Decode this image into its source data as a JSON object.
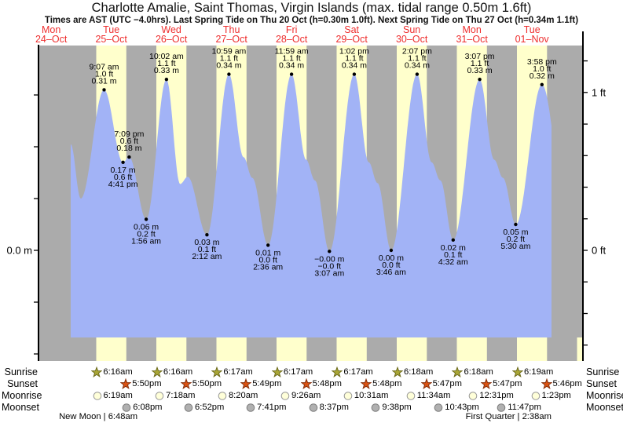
{
  "header": {
    "title": "Charlotte Amalie, Saint Thomas, Virgin Islands (max. tidal range 0.50m 1.6ft)",
    "subtitle": "Times are AST (UTC −4.0hrs). Last Spring Tide on Thu 20 Oct (h=0.30m 1.0ft). Next Spring Tide on Thu 27 Oct (h=0.34m 1.1ft)"
  },
  "day_labels": [
    {
      "weekday": "Mon",
      "date": "24–Oct"
    },
    {
      "weekday": "Tue",
      "date": "25–Oct"
    },
    {
      "weekday": "Wed",
      "date": "26–Oct"
    },
    {
      "weekday": "Thu",
      "date": "27–Oct"
    },
    {
      "weekday": "Fri",
      "date": "28–Oct"
    },
    {
      "weekday": "Sat",
      "date": "29–Oct"
    },
    {
      "weekday": "Sun",
      "date": "30–Oct"
    },
    {
      "weekday": "Mon",
      "date": "31–Oct"
    },
    {
      "weekday": "Tue",
      "date": "01–Nov"
    }
  ],
  "axis": {
    "left_label": "0.0 m",
    "right_labels": [
      {
        "text": "1 ft",
        "ft": 1.0
      },
      {
        "text": "0 ft",
        "ft": 0.0
      }
    ]
  },
  "colors": {
    "day_band": "#ffffcc",
    "night_band": "#ababab",
    "no_data": "#ababab",
    "water_fill": "#a2b3f6",
    "date_label": "#ee2e2e",
    "sunrise_star_fill": "#a9a636",
    "sunrise_star_stroke": "#6d6b1c",
    "sunset_star_fill": "#d95212",
    "sunset_star_stroke": "#842c08",
    "moonrise_fill": "#ffffd9",
    "moonrise_stroke": "#999999",
    "moonset_fill": "#b0b0b0",
    "moonset_stroke": "#7d7d7d"
  },
  "chart_data": {
    "type": "area",
    "title": "Charlotte Amalie, Saint Thomas, Virgin Islands (max. tidal range 0.50m 1.6ft)",
    "xlabel": "time (hours from Mon 24-Oct 00:00 AST, 9 day columns Mon 24-Oct to Tue 01-Nov)",
    "ylabel": "tide height",
    "y_unit": "m",
    "ylim_m": [
      -0.21,
      0.4
    ],
    "y_ticks_m": [
      0.3,
      0.2,
      0.1,
      0.0,
      -0.1,
      -0.2
    ],
    "y_ticks_ft": [
      1.2,
      1.0,
      0.8,
      0.6,
      0.4,
      0.2,
      0.0,
      -0.2,
      -0.4,
      -0.6
    ],
    "grid": false,
    "legend": false,
    "data_window_hours": [
      19.8,
      211.8
    ],
    "high_tides": [
      {
        "time": "9:07 am",
        "ft_label": "1.0 ft",
        "m_label": "0.31 m",
        "t": 33.117,
        "h": 0.31
      },
      {
        "time": "7:09 pm",
        "ft_label": "0.6 ft",
        "m_label": "0.18 m",
        "t": 43.15,
        "h": 0.18
      },
      {
        "time": "10:02 am",
        "ft_label": "1.1 ft",
        "m_label": "0.33 m",
        "t": 58.033,
        "h": 0.33
      },
      {
        "time": "10:59 am",
        "ft_label": "1.1 ft",
        "m_label": "0.34 m",
        "t": 82.983,
        "h": 0.34
      },
      {
        "time": "11:59 am",
        "ft_label": "1.1 ft",
        "m_label": "0.34 m",
        "t": 107.983,
        "h": 0.34
      },
      {
        "time": "1:02 pm",
        "ft_label": "1.1 ft",
        "m_label": "0.34 m",
        "t": 133.033,
        "h": 0.34
      },
      {
        "time": "2:07 pm",
        "ft_label": "1.1 ft",
        "m_label": "0.34 m",
        "t": 158.117,
        "h": 0.34
      },
      {
        "time": "3:07 pm",
        "ft_label": "1.1 ft",
        "m_label": "0.33 m",
        "t": 183.117,
        "h": 0.33
      },
      {
        "time": "3:58 pm",
        "ft_label": "1.0 ft",
        "m_label": "0.32 m",
        "t": 207.967,
        "h": 0.32
      }
    ],
    "low_tides": [
      {
        "time": "4:41 pm",
        "ft_label": "0.6 ft",
        "m_label": "0.17 m",
        "t": 40.683,
        "h": 0.17
      },
      {
        "time": "1:56 am",
        "ft_label": "0.2 ft",
        "m_label": "0.06 m",
        "t": 49.933,
        "h": 0.06
      },
      {
        "time": "2:12 am",
        "ft_label": "0.1 ft",
        "m_label": "0.03 m",
        "t": 74.2,
        "h": 0.03
      },
      {
        "time": "2:36 am",
        "ft_label": "0.0 ft",
        "m_label": "0.01 m",
        "t": 98.6,
        "h": 0.01
      },
      {
        "time": "3:07 am",
        "ft_label": "−0.0 ft",
        "m_label": "−0.00 m",
        "t": 123.117,
        "h": -0.002
      },
      {
        "time": "3:46 am",
        "ft_label": "0.0 ft",
        "m_label": "0.00 m",
        "t": 147.767,
        "h": 0.0
      },
      {
        "time": "4:32 am",
        "ft_label": "0.1 ft",
        "m_label": "0.02 m",
        "t": 172.533,
        "h": 0.02
      },
      {
        "time": "5:30 am",
        "ft_label": "0.2 ft",
        "m_label": "0.05 m",
        "t": 197.5,
        "h": 0.05
      }
    ],
    "unlabeled_curve_points": [
      {
        "t": 19.8,
        "h": 0.205
      },
      {
        "t": 23.8,
        "h": 0.1
      },
      {
        "t": 63.5,
        "h": 0.128
      },
      {
        "t": 66.5,
        "h": 0.142
      },
      {
        "t": 88.8,
        "h": 0.18
      },
      {
        "t": 92.3,
        "h": 0.14
      },
      {
        "t": 113.8,
        "h": 0.175
      },
      {
        "t": 117.3,
        "h": 0.135
      },
      {
        "t": 138.8,
        "h": 0.17
      },
      {
        "t": 142.3,
        "h": 0.13
      },
      {
        "t": 163.9,
        "h": 0.17
      },
      {
        "t": 167.4,
        "h": 0.135
      },
      {
        "t": 188.9,
        "h": 0.175
      },
      {
        "t": 192.4,
        "h": 0.14
      },
      {
        "t": 218.0,
        "h": 0.07
      }
    ]
  },
  "astro": {
    "row_labels": {
      "sunrise": "Sunrise",
      "sunset": "Sunset",
      "moonrise": "Moonrise",
      "moonset": "Moonset"
    },
    "sunrise": [
      {
        "time": "6:16am",
        "t": 30.267
      },
      {
        "time": "6:16am",
        "t": 54.267
      },
      {
        "time": "6:17am",
        "t": 78.283
      },
      {
        "time": "6:17am",
        "t": 102.283
      },
      {
        "time": "6:17am",
        "t": 126.283
      },
      {
        "time": "6:18am",
        "t": 150.3
      },
      {
        "time": "6:18am",
        "t": 174.3
      },
      {
        "time": "6:19am",
        "t": 198.317
      }
    ],
    "sunset": [
      {
        "time": "5:50pm",
        "t": 41.833
      },
      {
        "time": "5:50pm",
        "t": 65.833
      },
      {
        "time": "5:49pm",
        "t": 89.817
      },
      {
        "time": "5:48pm",
        "t": 113.8
      },
      {
        "time": "5:48pm",
        "t": 137.8
      },
      {
        "time": "5:47pm",
        "t": 161.783
      },
      {
        "time": "5:47pm",
        "t": 185.783
      },
      {
        "time": "5:46pm",
        "t": 209.767
      }
    ],
    "moonrise": [
      {
        "time": "6:19am",
        "t": 30.317
      },
      {
        "time": "7:18am",
        "t": 55.3
      },
      {
        "time": "8:20am",
        "t": 80.333
      },
      {
        "time": "9:26am",
        "t": 105.433
      },
      {
        "time": "10:31am",
        "t": 130.517
      },
      {
        "time": "11:34am",
        "t": 155.567
      },
      {
        "time": "12:31pm",
        "t": 180.517
      },
      {
        "time": "1:23pm",
        "t": 205.383
      }
    ],
    "moonset": [
      {
        "time": "6:08pm",
        "t": 42.133
      },
      {
        "time": "6:52pm",
        "t": 66.867
      },
      {
        "time": "7:41pm",
        "t": 91.683
      },
      {
        "time": "8:37pm",
        "t": 116.617
      },
      {
        "time": "9:38pm",
        "t": 141.633
      },
      {
        "time": "10:43pm",
        "t": 166.717
      },
      {
        "time": "11:47pm",
        "t": 191.783
      }
    ],
    "moon_phases": [
      {
        "text": "New Moon | 6:48am",
        "t": 30.8
      },
      {
        "text": "First Quarter | 2:38am",
        "t": 194.633
      }
    ]
  }
}
